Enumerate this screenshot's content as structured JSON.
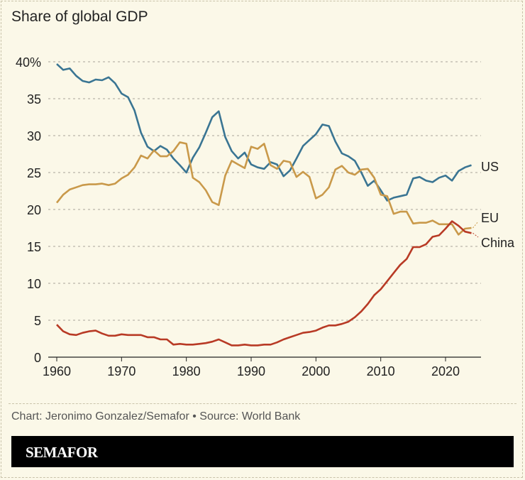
{
  "title": "Share of global GDP",
  "source": "Chart: Jeronimo Gonzalez/Semafor • Source: World Bank",
  "brand": "SEMAFOR",
  "chart_data": {
    "type": "line",
    "title": "Share of global GDP",
    "xlim": [
      1960,
      2024
    ],
    "ylim": [
      0,
      40
    ],
    "x_ticks": [
      "1960",
      "1970",
      "1980",
      "1990",
      "2000",
      "2010",
      "2020"
    ],
    "y_ticks": [
      "0",
      "5",
      "10",
      "15",
      "20",
      "25",
      "30",
      "35",
      "40%"
    ],
    "grid": true,
    "legend": "direct labels at line ends (right)",
    "x": [
      1960,
      1961,
      1962,
      1963,
      1964,
      1965,
      1966,
      1967,
      1968,
      1969,
      1970,
      1971,
      1972,
      1973,
      1974,
      1975,
      1976,
      1977,
      1978,
      1979,
      1980,
      1981,
      1982,
      1983,
      1984,
      1985,
      1986,
      1987,
      1988,
      1989,
      1990,
      1991,
      1992,
      1993,
      1994,
      1995,
      1996,
      1997,
      1998,
      1999,
      2000,
      2001,
      2002,
      2003,
      2004,
      2005,
      2006,
      2007,
      2008,
      2009,
      2010,
      2011,
      2012,
      2013,
      2014,
      2015,
      2016,
      2017,
      2018,
      2019,
      2020,
      2021,
      2022,
      2023,
      2024
    ],
    "series": [
      {
        "name": "US",
        "color": "#3a7593",
        "values": [
          39.7,
          38.9,
          39.1,
          38.1,
          37.4,
          37.2,
          37.6,
          37.5,
          37.9,
          37.1,
          35.7,
          35.2,
          33.4,
          30.4,
          28.5,
          27.9,
          28.6,
          28.1,
          26.9,
          26.0,
          25.0,
          27.0,
          28.4,
          30.4,
          32.5,
          33.3,
          29.8,
          27.9,
          26.9,
          27.7,
          26.1,
          25.7,
          25.5,
          26.4,
          26.1,
          24.5,
          25.3,
          26.9,
          28.6,
          29.4,
          30.2,
          31.5,
          31.3,
          29.2,
          27.6,
          27.2,
          26.6,
          25.0,
          23.2,
          23.9,
          22.6,
          21.2,
          21.6,
          21.8,
          22.0,
          24.2,
          24.4,
          23.9,
          23.7,
          24.3,
          24.6,
          23.9,
          25.2,
          25.7,
          26.0
        ]
      },
      {
        "name": "EU",
        "color": "#c9994a",
        "values": [
          20.9,
          22.0,
          22.7,
          23.0,
          23.3,
          23.4,
          23.4,
          23.5,
          23.3,
          23.5,
          24.2,
          24.7,
          25.7,
          27.3,
          26.9,
          28.0,
          27.2,
          27.2,
          27.9,
          29.1,
          28.9,
          24.3,
          23.7,
          22.6,
          21.0,
          20.6,
          24.6,
          26.6,
          26.1,
          25.6,
          28.5,
          28.2,
          28.9,
          26.0,
          25.5,
          26.6,
          26.4,
          24.4,
          25.1,
          24.4,
          21.5,
          22.0,
          23.0,
          25.4,
          25.9,
          25.0,
          24.7,
          25.4,
          25.5,
          24.3,
          22.0,
          21.8,
          19.4,
          19.7,
          19.7,
          18.1,
          18.2,
          18.2,
          18.5,
          18.0,
          18.0,
          18.0,
          16.6,
          17.4,
          17.5
        ]
      },
      {
        "name": "China",
        "color": "#b83a25",
        "values": [
          4.4,
          3.5,
          3.1,
          3.0,
          3.3,
          3.5,
          3.6,
          3.2,
          2.9,
          2.9,
          3.1,
          3.0,
          3.0,
          3.0,
          2.7,
          2.7,
          2.4,
          2.4,
          1.7,
          1.8,
          1.7,
          1.7,
          1.8,
          1.9,
          2.1,
          2.4,
          2.0,
          1.6,
          1.6,
          1.7,
          1.6,
          1.6,
          1.7,
          1.7,
          2.0,
          2.4,
          2.7,
          3.0,
          3.3,
          3.4,
          3.6,
          4.0,
          4.3,
          4.3,
          4.5,
          4.8,
          5.4,
          6.2,
          7.2,
          8.4,
          9.2,
          10.3,
          11.4,
          12.5,
          13.3,
          14.9,
          14.9,
          15.3,
          16.3,
          16.5,
          17.4,
          18.4,
          17.8,
          17.0,
          16.8
        ]
      }
    ]
  }
}
